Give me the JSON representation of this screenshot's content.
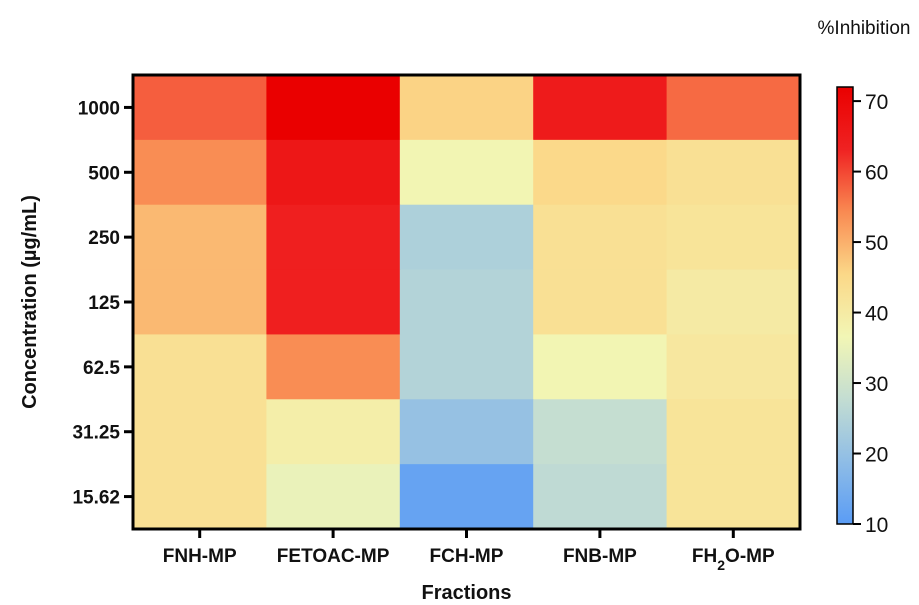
{
  "chart_data": {
    "type": "heatmap",
    "x_categories": [
      {
        "label": "FNH-MP"
      },
      {
        "label": "FETOAC-MP"
      },
      {
        "label": "FCH-MP"
      },
      {
        "label": "FNB-MP"
      },
      {
        "label": "FH",
        "sub": "2",
        "suffix": "O-MP"
      }
    ],
    "y_categories": [
      "1000",
      "500",
      "250",
      "125",
      "62.5",
      "31.25",
      "15.62"
    ],
    "values": [
      [
        58,
        72,
        46,
        65,
        57
      ],
      [
        54,
        66,
        37,
        45,
        43
      ],
      [
        49,
        64,
        24,
        43,
        42
      ],
      [
        49,
        64,
        25,
        43,
        40
      ],
      [
        43,
        54,
        25,
        37,
        41
      ],
      [
        43,
        39,
        20,
        28,
        42
      ],
      [
        43,
        35,
        12,
        27,
        42
      ]
    ],
    "xlabel": "Fractions",
    "ylabel": "Concentration (µg/mL)",
    "colorbar": {
      "title": "%Inhibition",
      "min": 10,
      "max": 72,
      "ticks": [
        10,
        20,
        30,
        40,
        50,
        60,
        70
      ],
      "colors": [
        "#5a9cf5",
        "#8fbde6",
        "#c3ddd2",
        "#f2f6b5",
        "#fbd888",
        "#f98a52",
        "#ef2222",
        "#ea0000"
      ]
    }
  }
}
